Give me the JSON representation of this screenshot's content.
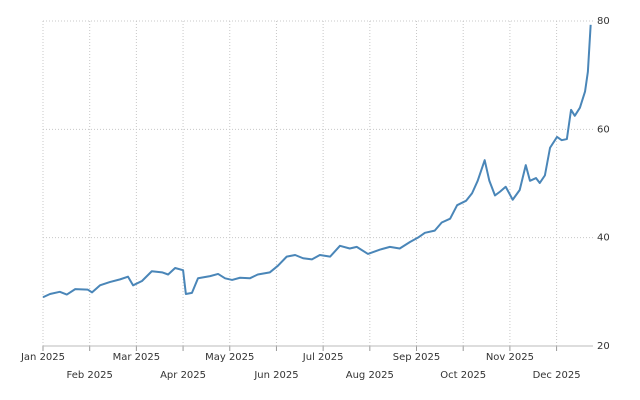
{
  "chart_data": {
    "type": "line",
    "x": [
      0,
      0.15,
      0.36,
      0.51,
      0.69,
      0.96,
      1.05,
      1.22,
      1.43,
      1.65,
      1.82,
      1.93,
      2.12,
      2.33,
      2.55,
      2.68,
      2.83,
      3.0,
      3.06,
      3.19,
      3.32,
      3.58,
      3.75,
      3.9,
      4.05,
      4.22,
      4.43,
      4.6,
      4.86,
      5.03,
      5.22,
      5.4,
      5.57,
      5.76,
      5.93,
      6.15,
      6.36,
      6.57,
      6.72,
      6.96,
      7.22,
      7.43,
      7.64,
      7.86,
      8.03,
      8.18,
      8.39,
      8.54,
      8.72,
      8.87,
      9.06,
      9.19,
      9.31,
      9.46,
      9.56,
      9.68,
      9.79,
      9.91,
      10.06,
      10.21,
      10.34,
      10.43,
      10.56,
      10.64,
      10.75,
      10.86,
      11.01,
      11.11,
      11.22,
      11.31,
      11.39,
      11.5,
      11.61,
      11.67,
      11.73
    ],
    "series": [
      {
        "color": "#4a86b8",
        "values": [
          29.0,
          29.6,
          30.0,
          29.5,
          30.5,
          30.4,
          29.9,
          31.2,
          31.8,
          32.3,
          32.8,
          31.2,
          32.0,
          33.8,
          33.6,
          33.2,
          34.4,
          34.0,
          29.6,
          29.8,
          32.5,
          32.9,
          33.3,
          32.5,
          32.2,
          32.6,
          32.5,
          33.2,
          33.6,
          34.8,
          36.5,
          36.8,
          36.2,
          36.0,
          36.8,
          36.5,
          38.5,
          38.0,
          38.3,
          37.0,
          37.8,
          38.3,
          38.0,
          39.2,
          40.0,
          40.9,
          41.3,
          42.8,
          43.5,
          46.0,
          46.8,
          48.2,
          50.5,
          54.3,
          50.5,
          47.8,
          48.5,
          49.4,
          47.0,
          48.8,
          53.4,
          50.5,
          51.0,
          50.1,
          51.5,
          56.6,
          58.6,
          58.0,
          58.2,
          63.6,
          62.5,
          64.0,
          67.0,
          70.6,
          79.3
        ]
      }
    ],
    "xlim": [
      0,
      11.78
    ],
    "xticks": [
      {
        "value": 0,
        "label": "Jan 2025"
      },
      {
        "value": 1,
        "label": "Feb 2025"
      },
      {
        "value": 2,
        "label": "Mar 2025"
      },
      {
        "value": 3,
        "label": "Apr 2025"
      },
      {
        "value": 4,
        "label": "May 2025"
      },
      {
        "value": 5,
        "label": "Jun 2025"
      },
      {
        "value": 6,
        "label": "Jul 2025"
      },
      {
        "value": 7,
        "label": "Aug 2025"
      },
      {
        "value": 8,
        "label": "Sep 2025"
      },
      {
        "value": 9,
        "label": "Oct 2025"
      },
      {
        "value": 10,
        "label": "Nov 2025"
      },
      {
        "value": 11,
        "label": "Dec 2025"
      }
    ],
    "ylim": [
      20,
      80
    ],
    "yticks": [
      20,
      40,
      60,
      80
    ],
    "grid": true
  }
}
